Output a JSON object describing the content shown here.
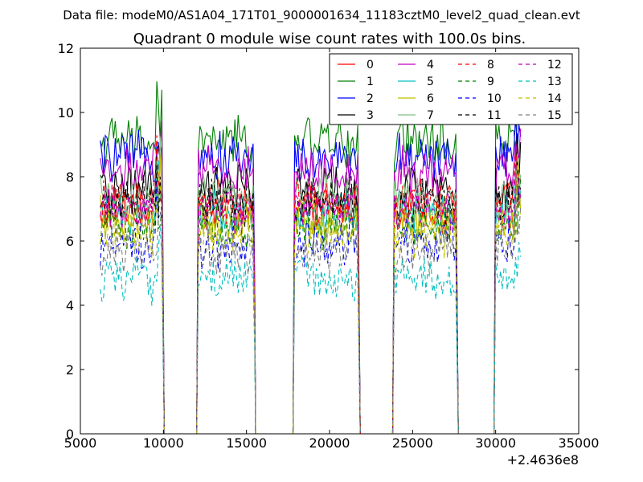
{
  "suptitle": "Data file: modeM0/AS1A04_171T01_9000001634_11183cztM0_level2_quad_clean.evt",
  "chart_data": {
    "type": "line",
    "title": "Quadrant 0 module wise count rates with 100.0s bins.",
    "xlabel": "",
    "ylabel": "",
    "x_offset_label": "+2.4636e8",
    "xlim": [
      5000,
      35000
    ],
    "ylim": [
      0,
      12
    ],
    "x_ticks": [
      "5000",
      "10000",
      "15000",
      "20000",
      "25000",
      "30000",
      "35000"
    ],
    "y_ticks": [
      "0",
      "2",
      "4",
      "6",
      "8",
      "10",
      "12"
    ],
    "grid": false,
    "legend_position": "top-right",
    "legend_columns": 4,
    "segments": [
      [
        6200,
        9900
      ],
      [
        12100,
        15400
      ],
      [
        17900,
        21700
      ],
      [
        23900,
        27600
      ],
      [
        30000,
        31500
      ]
    ],
    "x_transitions": [
      [
        9900,
        10050
      ],
      [
        15400,
        15700
      ],
      [
        17700,
        17900
      ],
      [
        21700,
        21750
      ],
      [
        23800,
        23900
      ],
      [
        27600,
        27650
      ],
      [
        29900,
        30000
      ]
    ],
    "series": [
      {
        "name": "0",
        "color": "#ff0000",
        "dash": "solid",
        "level": 7.0
      },
      {
        "name": "1",
        "color": "#008000",
        "dash": "solid",
        "level": 9.1
      },
      {
        "name": "2",
        "color": "#0000ff",
        "dash": "solid",
        "level": 8.6
      },
      {
        "name": "3",
        "color": "#000000",
        "dash": "solid",
        "level": 7.6
      },
      {
        "name": "4",
        "color": "#bf00bf",
        "dash": "solid",
        "level": 8.2
      },
      {
        "name": "5",
        "color": "#00bfbf",
        "dash": "solid",
        "level": 6.9
      },
      {
        "name": "6",
        "color": "#bfbf00",
        "dash": "solid",
        "level": 6.6
      },
      {
        "name": "7",
        "color": "#80c080",
        "dash": "solid",
        "level": 7.3
      },
      {
        "name": "8",
        "color": "#ff0000",
        "dash": "dashed",
        "level": 7.3
      },
      {
        "name": "9",
        "color": "#008000",
        "dash": "dashed",
        "level": 6.5
      },
      {
        "name": "10",
        "color": "#0000ff",
        "dash": "dashed",
        "level": 5.9
      },
      {
        "name": "11",
        "color": "#000000",
        "dash": "dashed",
        "level": 7.2
      },
      {
        "name": "12",
        "color": "#bf00bf",
        "dash": "dashed",
        "level": 7.0
      },
      {
        "name": "13",
        "color": "#00bfbf",
        "dash": "dashed",
        "level": 4.8
      },
      {
        "name": "14",
        "color": "#bfbf00",
        "dash": "dashed",
        "level": 6.3
      },
      {
        "name": "15",
        "color": "#808080",
        "dash": "dashed",
        "level": 5.7
      }
    ]
  }
}
